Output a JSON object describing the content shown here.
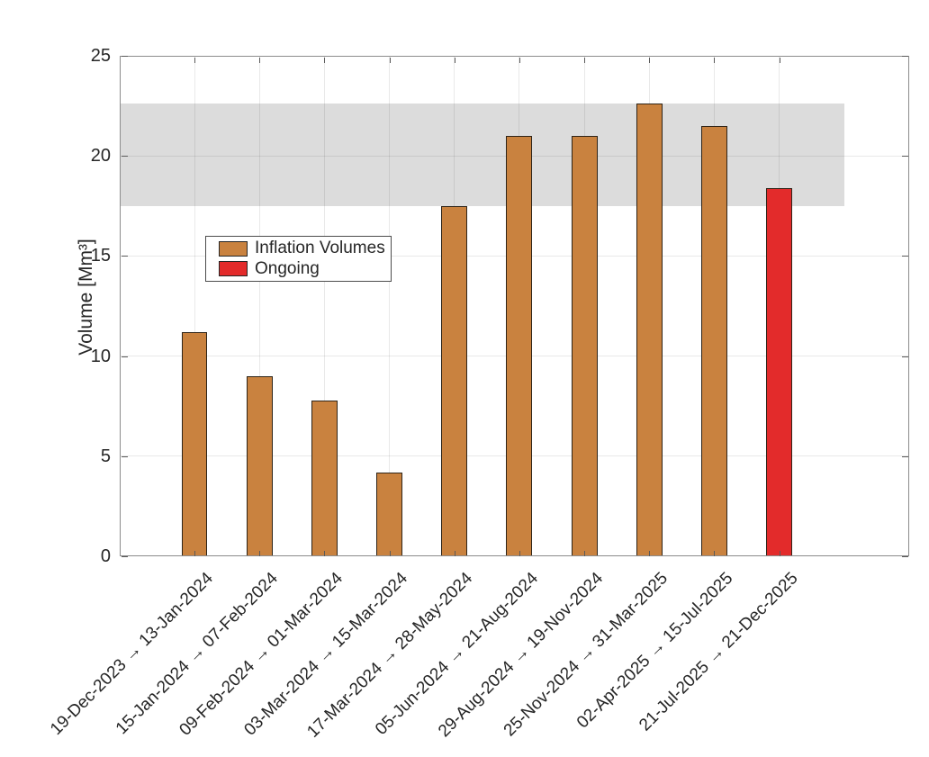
{
  "figure": {
    "background": "#FFFFFF"
  },
  "chart_data": {
    "type": "bar",
    "title": "",
    "xlabel": "",
    "ylabel": "Volume [Mm³]",
    "categories": [
      "19-Dec-2023 → 13-Jan-2024",
      "15-Jan-2024 → 07-Feb-2024",
      "09-Feb-2024 → 01-Mar-2024",
      "03-Mar-2024 → 15-Mar-2024",
      "17-Mar-2024 → 28-May-2024",
      "05-Jun-2024 → 21-Aug-2024",
      "29-Aug-2024 → 19-Nov-2024",
      "25-Nov-2024 → 31-Mar-2025",
      "02-Apr-2025 → 15-Jul-2025",
      "21-Jul-2025 → 21-Dec-2025"
    ],
    "values": [
      11.2,
      9.0,
      7.8,
      4.2,
      17.5,
      21.0,
      21.0,
      22.6,
      21.5,
      18.4
    ],
    "ongoing_index": 9,
    "series": [
      {
        "name": "Inflation Volumes",
        "indices": [
          0,
          1,
          2,
          3,
          4,
          5,
          6,
          7,
          8
        ]
      },
      {
        "name": "Ongoing",
        "indices": [
          9
        ]
      }
    ],
    "band": {
      "ymin": 17.5,
      "ymax": 22.6,
      "x_start_axis": -0.15,
      "x_end_axis": 11.0,
      "color": "#DCDCDC"
    },
    "yticks": [
      0,
      5,
      10,
      15,
      20,
      25
    ],
    "ylim": [
      0,
      25
    ],
    "xlim": [
      -0.15,
      12.0
    ],
    "bar_width_axis_units": 0.4,
    "grid": true,
    "colors": {
      "inflation": "#C9823F",
      "ongoing": "#E32B2B",
      "bar_edge": "#2E2418",
      "band": "#DCDCDC",
      "axis": "#8C8C8C",
      "tick": "#5A5A5A",
      "text": "#262626"
    },
    "legend": {
      "position": "upper-left-inside",
      "entries": [
        {
          "label": "Inflation Volumes",
          "color": "#C9823F"
        },
        {
          "label": "Ongoing",
          "color": "#E32B2B"
        }
      ]
    }
  }
}
